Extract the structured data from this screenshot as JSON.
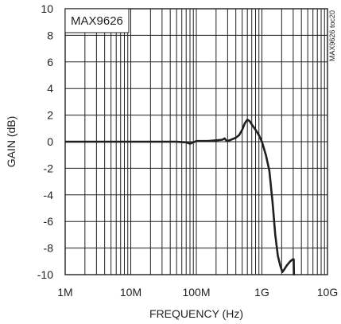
{
  "chart_data": {
    "type": "line",
    "title": "",
    "box_label": "MAX9626",
    "side_label": "MAX9626 toc20",
    "xlabel": "FREQUENCY (Hz)",
    "ylabel": "GAIN (dB)",
    "x_scale": "log",
    "xlim": [
      1000000,
      10000000000
    ],
    "ylim": [
      -10,
      10
    ],
    "grid": true,
    "x_ticks": [
      {
        "value": 1000000,
        "label": "1M"
      },
      {
        "value": 10000000,
        "label": "10M"
      },
      {
        "value": 100000000,
        "label": "100M"
      },
      {
        "value": 1000000000,
        "label": "1G"
      },
      {
        "value": 10000000000,
        "label": "10G"
      }
    ],
    "y_ticks": [
      {
        "value": 10,
        "label": "10"
      },
      {
        "value": 8,
        "label": "8"
      },
      {
        "value": 6,
        "label": "6"
      },
      {
        "value": 4,
        "label": "4"
      },
      {
        "value": 2,
        "label": "2"
      },
      {
        "value": 0,
        "label": "0"
      },
      {
        "value": -2,
        "label": "-2"
      },
      {
        "value": -4,
        "label": "-4"
      },
      {
        "value": -6,
        "label": "-6"
      },
      {
        "value": -8,
        "label": "-8"
      },
      {
        "value": -10,
        "label": "-10"
      }
    ],
    "series": [
      {
        "color": "#231f20",
        "points": [
          [
            1000000,
            0
          ],
          [
            10000000,
            0
          ],
          [
            50000000,
            0
          ],
          [
            70000000,
            -0.05
          ],
          [
            80000000,
            -0.15
          ],
          [
            90000000,
            -0.05
          ],
          [
            100000000,
            0.05
          ],
          [
            150000000,
            0.05
          ],
          [
            200000000,
            0.1
          ],
          [
            250000000,
            0.15
          ],
          [
            270000000,
            0.25
          ],
          [
            290000000,
            0.05
          ],
          [
            320000000,
            0.1
          ],
          [
            400000000,
            0.3
          ],
          [
            450000000,
            0.5
          ],
          [
            500000000,
            0.9
          ],
          [
            550000000,
            1.4
          ],
          [
            600000000,
            1.65
          ],
          [
            650000000,
            1.55
          ],
          [
            700000000,
            1.3
          ],
          [
            800000000,
            0.9
          ],
          [
            900000000,
            0.5
          ],
          [
            1000000000,
            0
          ],
          [
            1150000000,
            -1
          ],
          [
            1300000000,
            -2.2
          ],
          [
            1450000000,
            -4.5
          ],
          [
            1600000000,
            -7
          ],
          [
            1750000000,
            -8.6
          ],
          [
            1900000000,
            -9.3
          ],
          [
            2050000000,
            -9.8
          ],
          [
            2200000000,
            -9.6
          ],
          [
            2400000000,
            -9.3
          ],
          [
            2700000000,
            -9.0
          ],
          [
            2950000000,
            -8.85
          ],
          [
            3050000000,
            -8.85
          ],
          [
            3080000000,
            -10
          ]
        ]
      }
    ]
  }
}
